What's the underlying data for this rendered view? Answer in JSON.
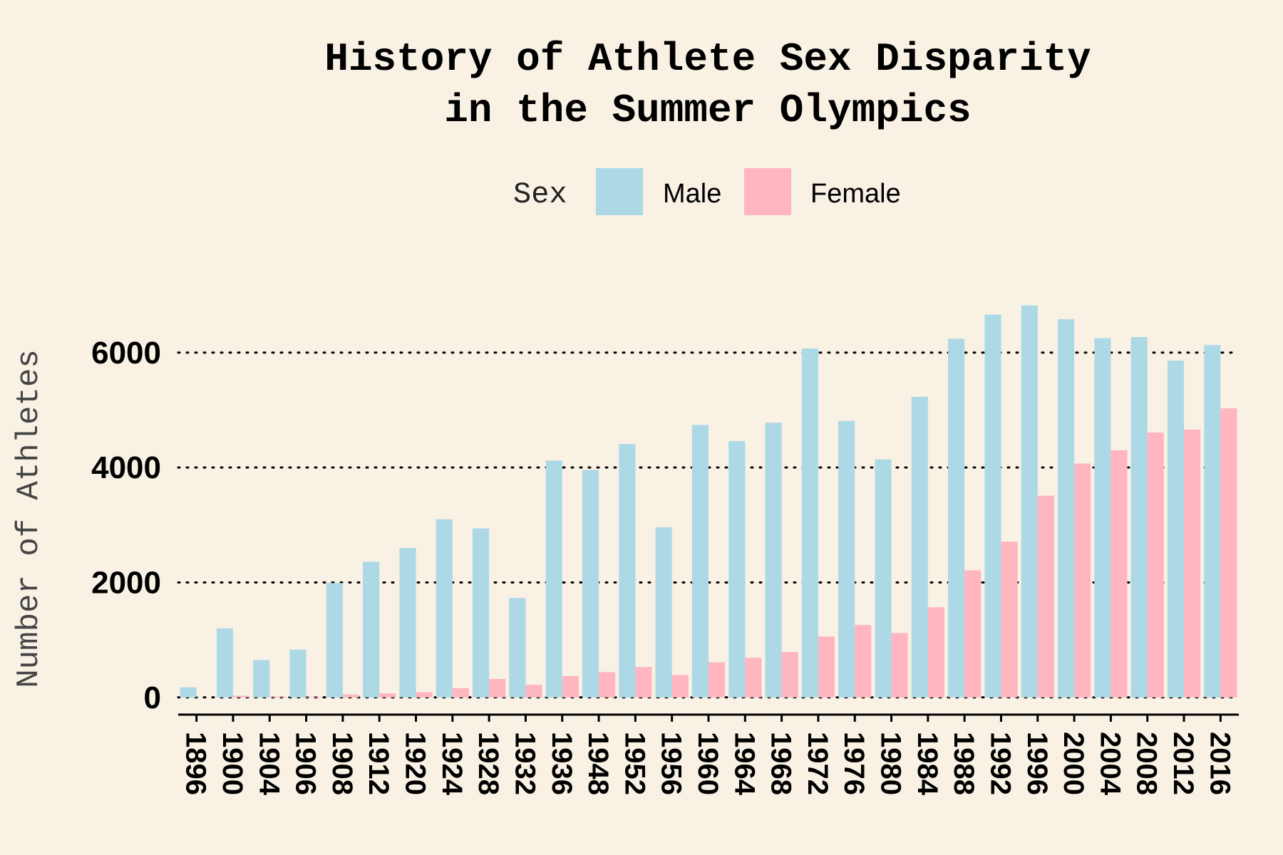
{
  "chart_data": {
    "type": "bar",
    "title_lines": [
      "History of Athlete Sex Disparity",
      "in the Summer Olympics"
    ],
    "xlabel": "",
    "ylabel": "Number of Athletes",
    "ylim": [
      -300,
      7300
    ],
    "yticks": [
      0,
      2000,
      4000,
      6000
    ],
    "grid": "horizontal-dotted",
    "legend": {
      "title": "Sex",
      "placement": "top-center"
    },
    "categories": [
      "1896",
      "1900",
      "1904",
      "1906",
      "1908",
      "1912",
      "1920",
      "1924",
      "1928",
      "1932",
      "1936",
      "1948",
      "1952",
      "1956",
      "1960",
      "1964",
      "1968",
      "1972",
      "1976",
      "1980",
      "1984",
      "1988",
      "1992",
      "1996",
      "2000",
      "2004",
      "2008",
      "2012",
      "2016"
    ],
    "series": [
      {
        "name": "Male",
        "color": "#ADD8E6",
        "values": [
          176,
          1200,
          650,
          830,
          1990,
          2360,
          2600,
          3100,
          2940,
          1730,
          4120,
          3960,
          4410,
          2960,
          4740,
          4460,
          4780,
          6070,
          4810,
          4140,
          5230,
          6240,
          6660,
          6820,
          6580,
          6250,
          6270,
          5860,
          6130
        ]
      },
      {
        "name": "Female",
        "color": "#FFB6C1",
        "values": [
          0,
          30,
          16,
          11,
          50,
          70,
          90,
          160,
          320,
          220,
          370,
          440,
          530,
          390,
          610,
          690,
          790,
          1060,
          1260,
          1120,
          1570,
          2210,
          2710,
          3510,
          4070,
          4300,
          4610,
          4660,
          5030
        ]
      }
    ]
  }
}
